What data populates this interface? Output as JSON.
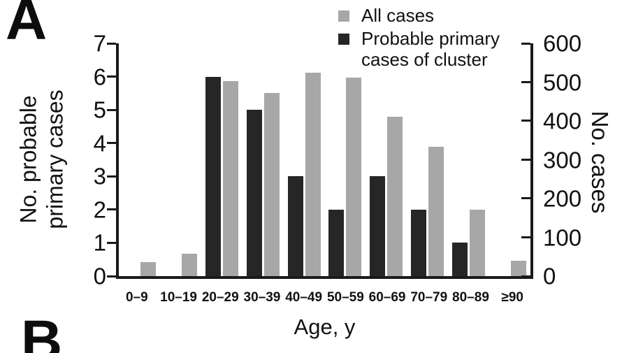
{
  "panel": {
    "label_a": "A",
    "label_b": "B"
  },
  "legend": {
    "all_cases_label": "All cases",
    "primary_label_line1": "Probable primary",
    "primary_label_line2": "cases of cluster"
  },
  "axes": {
    "left_title_line1": "No. probable",
    "left_title_line2": "primary cases",
    "right_title": "No. cases",
    "x_title": "Age, y",
    "left_ticks": [
      "7",
      "6",
      "5",
      "4",
      "3",
      "2",
      "1",
      "0"
    ],
    "right_ticks": [
      "600",
      "500",
      "400",
      "300",
      "200",
      "100",
      "0"
    ]
  },
  "colors": {
    "all_cases": "#a7a7a7",
    "primary": "#262626",
    "axis": "#1a1a1a"
  },
  "chart_data": {
    "type": "bar",
    "categories": [
      "0–9",
      "10–19",
      "20–29",
      "30–39",
      "40–49",
      "50–59",
      "60–69",
      "70–79",
      "80–89",
      "≥90"
    ],
    "series": [
      {
        "name": "Probable primary cases of cluster",
        "axis": "left",
        "color": "#262626",
        "values": [
          0,
          0,
          6,
          5,
          3,
          2,
          3,
          2,
          1,
          0
        ]
      },
      {
        "name": "All cases",
        "axis": "right",
        "color": "#a7a7a7",
        "values": [
          36,
          58,
          502,
          472,
          524,
          512,
          411,
          334,
          172,
          39
        ]
      }
    ],
    "left_axis": {
      "label": "No. probable primary cases",
      "min": 0,
      "max": 7,
      "step": 1
    },
    "right_axis": {
      "label": "No. cases",
      "min": 0,
      "max": 600,
      "step": 100
    },
    "xlabel": "Age, y",
    "title": "",
    "grid": false,
    "legend_position": "top-right"
  }
}
